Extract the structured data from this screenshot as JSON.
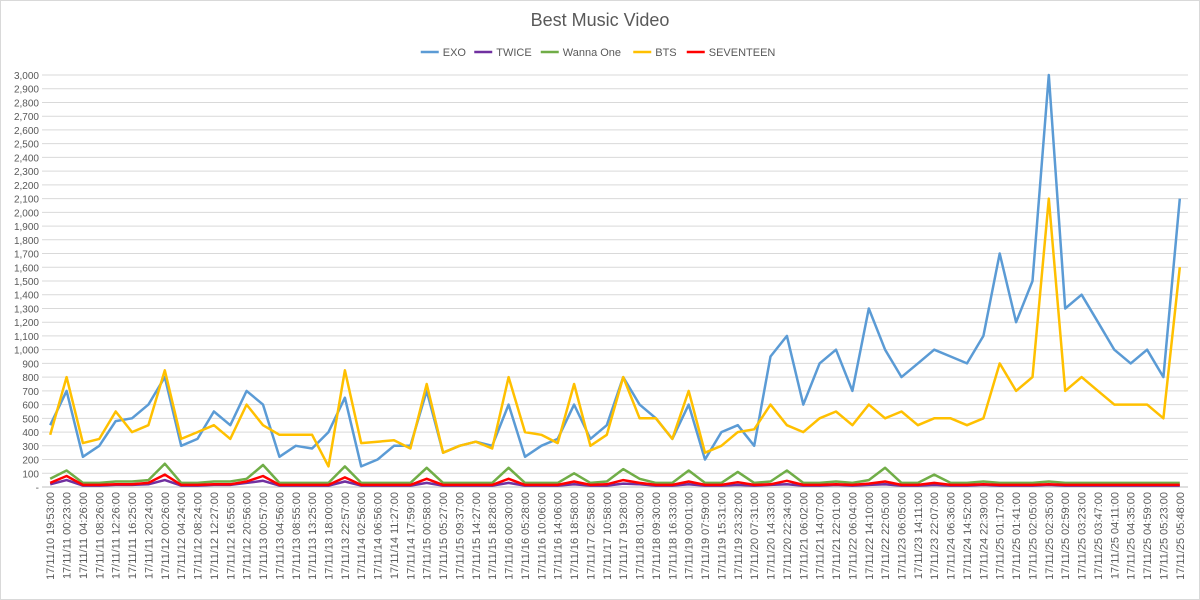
{
  "chart_data": {
    "type": "line",
    "title": "Best Music Video",
    "categories": [
      "17/11/10 19:53:00",
      "17/11/11 00:23:00",
      "17/11/11 04:26:00",
      "17/11/11 08:26:00",
      "17/11/11 12:26:00",
      "17/11/11 16:25:00",
      "17/11/11 20:24:00",
      "17/11/12 00:26:00",
      "17/11/12 04:24:00",
      "17/11/12 08:24:00",
      "17/11/12 12:27:00",
      "17/11/12 16:55:00",
      "17/11/12 20:56:00",
      "17/11/13 00:57:00",
      "17/11/13 04:56:00",
      "17/11/13 08:55:00",
      "17/11/13 13:25:00",
      "17/11/13 18:00:00",
      "17/11/13 22:57:00",
      "17/11/14 02:56:00",
      "17/11/14 06:56:00",
      "17/11/14 11:27:00",
      "17/11/14 17:59:00",
      "17/11/15 00:58:00",
      "17/11/15 05:27:00",
      "17/11/15 09:37:00",
      "17/11/15 14:27:00",
      "17/11/15 18:28:00",
      "17/11/16 00:30:00",
      "17/11/16 05:28:00",
      "17/11/16 10:06:00",
      "17/11/16 14:06:00",
      "17/11/16 18:58:00",
      "17/11/17 02:58:00",
      "17/11/17 10:58:00",
      "17/11/17 19:28:00",
      "17/11/18 01:30:00",
      "17/11/18 09:30:00",
      "17/11/18 16:33:00",
      "17/11/19 00:01:00",
      "17/11/19 07:59:00",
      "17/11/19 15:31:00",
      "17/11/19 23:32:00",
      "17/11/20 07:31:00",
      "17/11/20 14:33:00",
      "17/11/20 22:34:00",
      "17/11/21 06:02:00",
      "17/11/21 14:07:00",
      "17/11/21 22:01:00",
      "17/11/22 06:04:00",
      "17/11/22 14:10:00",
      "17/11/22 22:05:00",
      "17/11/23 06:05:00",
      "17/11/23 14:11:00",
      "17/11/23 22:07:00",
      "17/11/24 06:36:00",
      "17/11/24 14:52:00",
      "17/11/24 22:39:00",
      "17/11/25 01:17:00",
      "17/11/25 01:41:00",
      "17/11/25 02:05:00",
      "17/11/25 02:35:00",
      "17/11/25 02:59:00",
      "17/11/25 03:23:00",
      "17/11/25 03:47:00",
      "17/11/25 04:11:00",
      "17/11/25 04:35:00",
      "17/11/25 04:59:00",
      "17/11/25 05:23:00",
      "17/11/25 05:48:00"
    ],
    "series": [
      {
        "name": "EXO",
        "color": "#5b9bd5",
        "values": [
          450,
          700,
          220,
          300,
          480,
          500,
          600,
          800,
          300,
          350,
          550,
          450,
          700,
          600,
          220,
          300,
          280,
          400,
          650,
          150,
          200,
          300,
          300,
          700,
          250,
          300,
          330,
          300,
          600,
          220,
          300,
          350,
          600,
          350,
          450,
          800,
          600,
          500,
          350,
          600,
          200,
          400,
          450,
          300,
          950,
          1100,
          600,
          900,
          1000,
          700,
          1300,
          1000,
          800,
          900,
          1000,
          950,
          900,
          1100,
          1700,
          1200,
          1500,
          3000,
          1300,
          1400,
          1200,
          1000,
          900,
          1000,
          800,
          2100
        ]
      },
      {
        "name": "TWICE",
        "color": "#7030a0",
        "values": [
          20,
          50,
          10,
          10,
          15,
          15,
          20,
          50,
          10,
          10,
          15,
          15,
          30,
          45,
          10,
          10,
          10,
          10,
          40,
          10,
          10,
          10,
          10,
          30,
          10,
          10,
          10,
          10,
          30,
          10,
          10,
          10,
          20,
          10,
          10,
          25,
          20,
          10,
          10,
          20,
          10,
          10,
          15,
          10,
          15,
          20,
          10,
          10,
          15,
          10,
          15,
          20,
          10,
          10,
          15,
          10,
          10,
          15,
          10,
          10,
          10,
          15,
          10,
          10,
          10,
          10,
          10,
          10,
          10,
          10
        ]
      },
      {
        "name": "Wanna One",
        "color": "#70ad47",
        "values": [
          60,
          120,
          30,
          30,
          40,
          40,
          50,
          170,
          30,
          30,
          40,
          40,
          60,
          160,
          30,
          30,
          30,
          30,
          150,
          30,
          30,
          30,
          30,
          140,
          30,
          30,
          30,
          30,
          140,
          30,
          30,
          30,
          100,
          30,
          40,
          130,
          60,
          30,
          30,
          120,
          30,
          30,
          110,
          30,
          40,
          120,
          30,
          30,
          40,
          30,
          50,
          140,
          30,
          30,
          90,
          30,
          30,
          40,
          30,
          30,
          30,
          40,
          30,
          30,
          30,
          30,
          30,
          30,
          30,
          30
        ]
      },
      {
        "name": "BTS",
        "color": "#ffc000",
        "values": [
          380,
          800,
          320,
          350,
          550,
          400,
          450,
          850,
          350,
          400,
          450,
          350,
          600,
          450,
          380,
          380,
          380,
          150,
          850,
          320,
          330,
          340,
          280,
          750,
          250,
          300,
          330,
          280,
          800,
          400,
          380,
          320,
          750,
          300,
          380,
          800,
          500,
          500,
          350,
          700,
          250,
          300,
          400,
          420,
          600,
          450,
          400,
          500,
          550,
          450,
          600,
          500,
          550,
          450,
          500,
          500,
          450,
          500,
          900,
          700,
          800,
          2100,
          700,
          800,
          700,
          600,
          600,
          600,
          500,
          1600
        ]
      },
      {
        "name": "SEVENTEEN",
        "color": "#ff0000",
        "values": [
          30,
          80,
          15,
          15,
          20,
          20,
          30,
          90,
          15,
          15,
          20,
          20,
          40,
          80,
          15,
          15,
          15,
          15,
          70,
          15,
          15,
          15,
          15,
          60,
          15,
          15,
          15,
          15,
          60,
          15,
          15,
          15,
          40,
          15,
          20,
          50,
          30,
          15,
          15,
          40,
          15,
          15,
          35,
          15,
          20,
          45,
          15,
          15,
          20,
          15,
          25,
          40,
          15,
          15,
          30,
          15,
          15,
          20,
          15,
          15,
          15,
          20,
          15,
          15,
          15,
          15,
          15,
          15,
          15,
          15
        ]
      }
    ],
    "ylim": [
      0,
      3000
    ],
    "yticks": [
      {
        "value": 0,
        "label": "-"
      },
      100,
      200,
      300,
      400,
      500,
      600,
      700,
      800,
      900,
      {
        "value": 1000,
        "label": "1,000"
      },
      {
        "value": 1100,
        "label": "1,100"
      },
      {
        "value": 1200,
        "label": "1,200"
      },
      {
        "value": 1300,
        "label": "1,300"
      },
      {
        "value": 1400,
        "label": "1,400"
      },
      {
        "value": 1500,
        "label": "1,500"
      },
      {
        "value": 1600,
        "label": "1,600"
      },
      {
        "value": 1700,
        "label": "1,700"
      },
      {
        "value": 1800,
        "label": "1,800"
      },
      {
        "value": 1900,
        "label": "1,900"
      },
      {
        "value": 2000,
        "label": "2,000"
      },
      {
        "value": 2100,
        "label": "2,100"
      },
      {
        "value": 2200,
        "label": "2,200"
      },
      {
        "value": 2300,
        "label": "2,300"
      },
      {
        "value": 2400,
        "label": "2,400"
      },
      {
        "value": 2500,
        "label": "2,500"
      },
      {
        "value": 2600,
        "label": "2,600"
      },
      {
        "value": 2700,
        "label": "2,700"
      },
      {
        "value": 2800,
        "label": "2,800"
      },
      {
        "value": 2900,
        "label": "2,900"
      },
      {
        "value": 3000,
        "label": "3,000"
      }
    ],
    "grid": true
  }
}
